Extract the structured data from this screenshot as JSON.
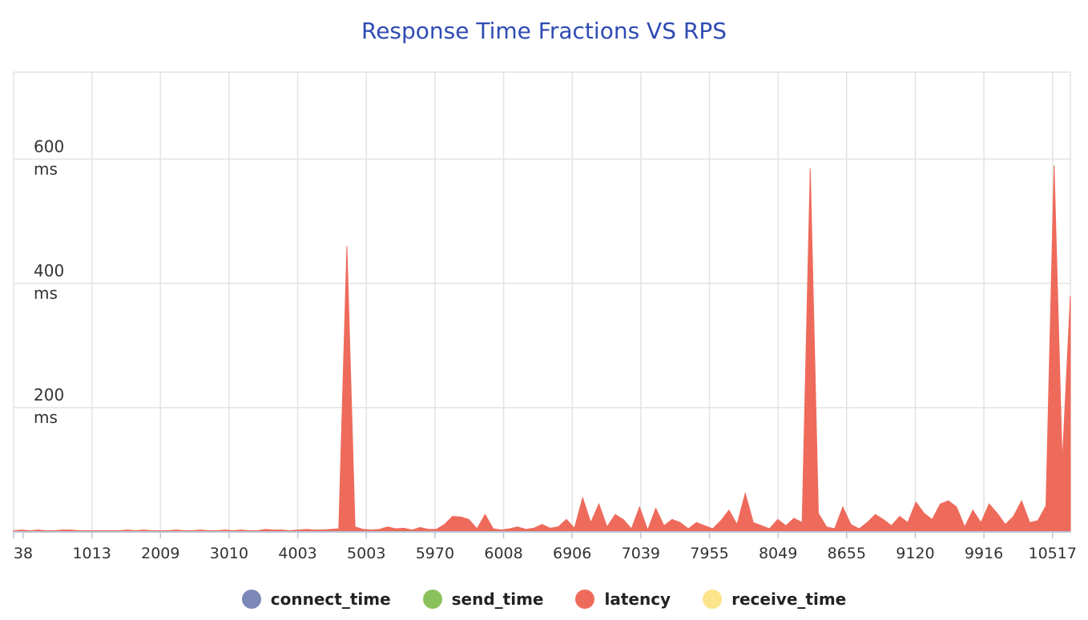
{
  "chart_data": {
    "type": "area",
    "title": "Response Time Fractions VS RPS",
    "xlabel": "",
    "ylabel": "",
    "ylim": [
      0,
      740
    ],
    "yticks": [
      {
        "value": 200,
        "label_top": "200",
        "label_bottom": "ms"
      },
      {
        "value": 400,
        "label_top": "400",
        "label_bottom": "ms"
      },
      {
        "value": 600,
        "label_top": "600",
        "label_bottom": "ms"
      }
    ],
    "x_tick_labels": [
      "38",
      "1013",
      "2009",
      "3010",
      "4003",
      "5003",
      "5970",
      "6008",
      "6906",
      "7039",
      "7955",
      "8049",
      "8655",
      "9120",
      "9916",
      "10517"
    ],
    "grid": true,
    "legend_position": "bottom",
    "series": [
      {
        "name": "connect_time",
        "color": "#7b88b8",
        "values": []
      },
      {
        "name": "send_time",
        "color": "#8ac15c",
        "values": []
      },
      {
        "name": "latency",
        "color": "#ee6a5b",
        "values": [
          2,
          3,
          2,
          3,
          2,
          2,
          3,
          3,
          2,
          2,
          2,
          2,
          2,
          2,
          3,
          2,
          3,
          2,
          2,
          2,
          3,
          2,
          2,
          3,
          2,
          2,
          3,
          2,
          3,
          2,
          2,
          4,
          3,
          3,
          2,
          3,
          4,
          3,
          3,
          4,
          5,
          460,
          8,
          4,
          3,
          4,
          8,
          5,
          6,
          3,
          7,
          4,
          4,
          12,
          25,
          24,
          20,
          5,
          28,
          5,
          3,
          5,
          8,
          4,
          6,
          12,
          6,
          8,
          20,
          6,
          55,
          15,
          45,
          8,
          28,
          20,
          5,
          40,
          3,
          38,
          10,
          20,
          15,
          5,
          15,
          10,
          5,
          18,
          35,
          12,
          62,
          15,
          10,
          5,
          20,
          10,
          22,
          15,
          585,
          30,
          8,
          5,
          40,
          12,
          5,
          15,
          28,
          20,
          10,
          25,
          15,
          48,
          30,
          20,
          45,
          50,
          40,
          8,
          35,
          15,
          45,
          30,
          12,
          25,
          50,
          15,
          18,
          42,
          590,
          110,
          380
        ]
      },
      {
        "name": "receive_time",
        "color": "#fbe48a",
        "values": []
      }
    ]
  }
}
